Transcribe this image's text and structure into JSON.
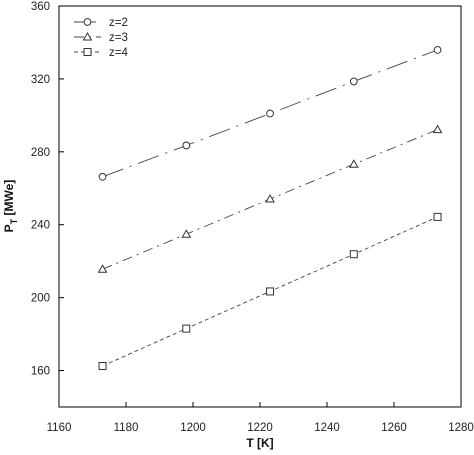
{
  "chart_data": {
    "type": "line",
    "xlabel": "T [K]",
    "ylabel_main": "P",
    "ylabel_sub": "T",
    "ylabel_unit": " [MWe]",
    "xlim": [
      1160,
      1280
    ],
    "ylim": [
      140,
      360
    ],
    "xticks": [
      1160,
      1180,
      1200,
      1220,
      1240,
      1260,
      1280
    ],
    "yticks": [
      160,
      200,
      240,
      280,
      320,
      360
    ],
    "grid": false,
    "legend_position": "top-left",
    "series": [
      {
        "name": "z=2",
        "marker": "circle",
        "dash": "22,7,2,7",
        "x": [
          1173,
          1198,
          1223,
          1248,
          1273
        ],
        "y": [
          266.3,
          283.5,
          301,
          318.6,
          335.9
        ]
      },
      {
        "name": "z=3",
        "marker": "triangle",
        "dash": "10,5,2,5",
        "x": [
          1173,
          1198,
          1223,
          1248,
          1273
        ],
        "y": [
          215.6,
          234.8,
          254.1,
          273.2,
          292.2
        ]
      },
      {
        "name": "z=4",
        "marker": "square",
        "dash": "4,3",
        "x": [
          1173,
          1198,
          1223,
          1248,
          1273
        ],
        "y": [
          162.5,
          183,
          203.4,
          223.8,
          244.3
        ]
      }
    ]
  }
}
